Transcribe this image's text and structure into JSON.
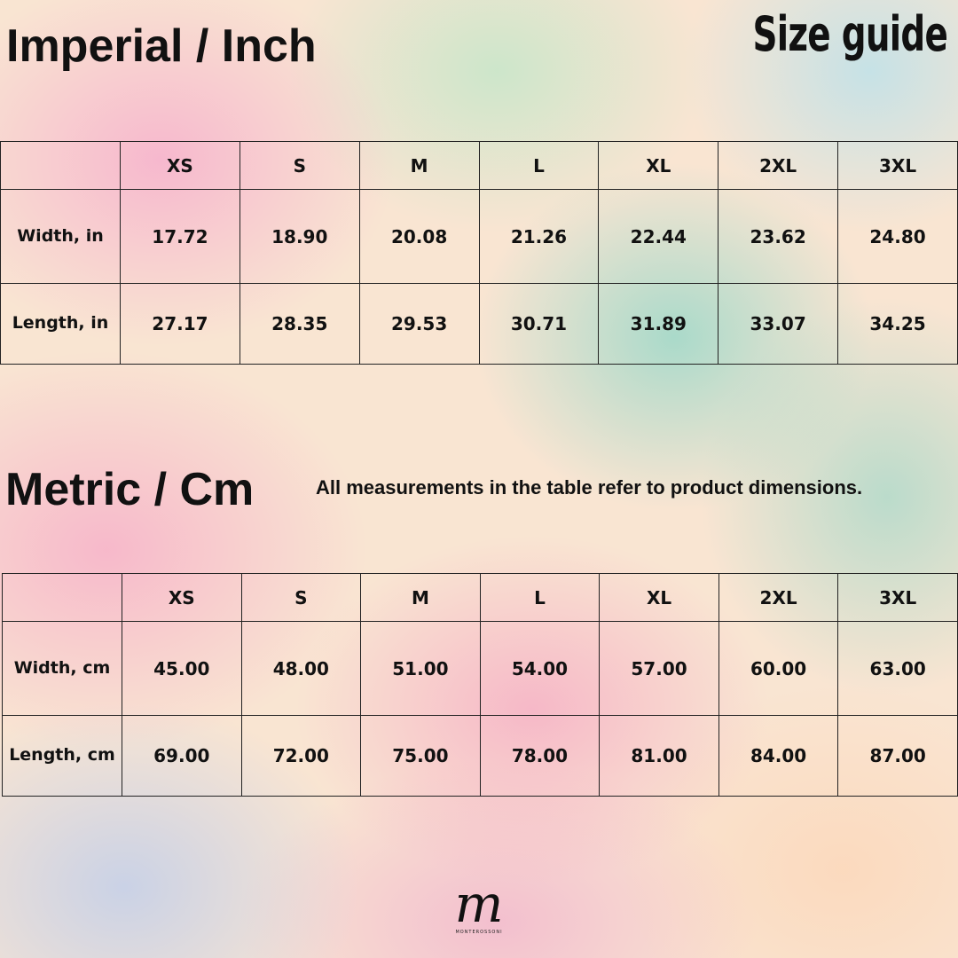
{
  "brand": {
    "title": "Size guide",
    "logo_mark": "m",
    "logo_text": "MONTEROSSONI"
  },
  "imperial": {
    "heading": "Imperial / Inch",
    "columns": [
      "",
      "XS",
      "S",
      "M",
      "L",
      "XL",
      "2XL",
      "3XL"
    ],
    "rows": [
      {
        "label": "Width, in",
        "values": [
          "17.72",
          "18.90",
          "20.08",
          "21.26",
          "22.44",
          "23.62",
          "24.80"
        ]
      },
      {
        "label": "Length, in",
        "values": [
          "27.17",
          "28.35",
          "29.53",
          "30.71",
          "31.89",
          "33.07",
          "34.25"
        ]
      }
    ]
  },
  "metric": {
    "heading": "Metric / Cm",
    "note": "All measurements in the table refer to product dimensions.",
    "columns": [
      "",
      "XS",
      "S",
      "M",
      "L",
      "XL",
      "2XL",
      "3XL"
    ],
    "rows": [
      {
        "label": "Width, cm",
        "values": [
          "45.00",
          "48.00",
          "51.00",
          "54.00",
          "57.00",
          "60.00",
          "63.00"
        ]
      },
      {
        "label": "Length, cm",
        "values": [
          "69.00",
          "72.00",
          "75.00",
          "78.00",
          "81.00",
          "84.00",
          "87.00"
        ]
      }
    ]
  },
  "colors": {
    "text": "#111111",
    "grid_line": "#222222"
  }
}
